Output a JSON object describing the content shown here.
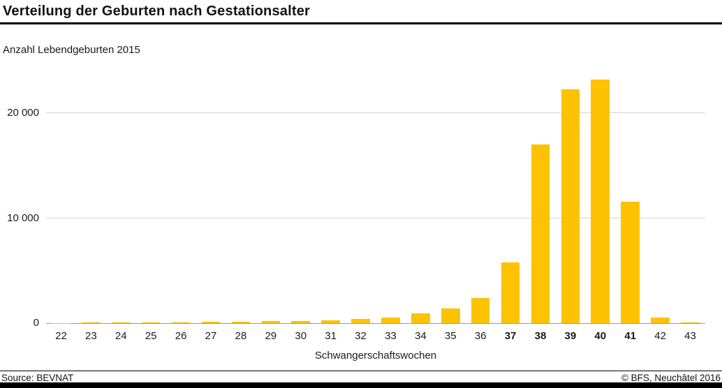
{
  "header": {
    "title": "Verteilung der Geburten nach Gestationsalter"
  },
  "chart_data": {
    "type": "bar",
    "title": "Verteilung der Geburten nach Gestationsalter",
    "subtitle": "Anzahl Lebendgeburten 2015",
    "xlabel": "Schwangerschaftswochen",
    "ylabel": "",
    "categories": [
      "22",
      "23",
      "24",
      "25",
      "26",
      "27",
      "28",
      "29",
      "30",
      "31",
      "32",
      "33",
      "34",
      "35",
      "36",
      "37",
      "38",
      "39",
      "40",
      "41",
      "42",
      "43"
    ],
    "values": [
      30,
      40,
      60,
      70,
      90,
      110,
      160,
      170,
      230,
      280,
      420,
      560,
      900,
      1400,
      2400,
      5800,
      17000,
      22300,
      23200,
      11600,
      500,
      60
    ],
    "bold_categories": [
      "37",
      "38",
      "39",
      "40",
      "41"
    ],
    "ylim": [
      0,
      24000
    ],
    "yticks": [
      {
        "value": 0,
        "label": "0"
      },
      {
        "value": 10000,
        "label": "10 000"
      },
      {
        "value": 20000,
        "label": "20 000"
      }
    ],
    "grid": true,
    "legend": "none",
    "bar_color": "#fdc300"
  },
  "footer": {
    "source": "Source: BEVNAT",
    "copyright": "© BFS, Neuchâtel 2016"
  }
}
